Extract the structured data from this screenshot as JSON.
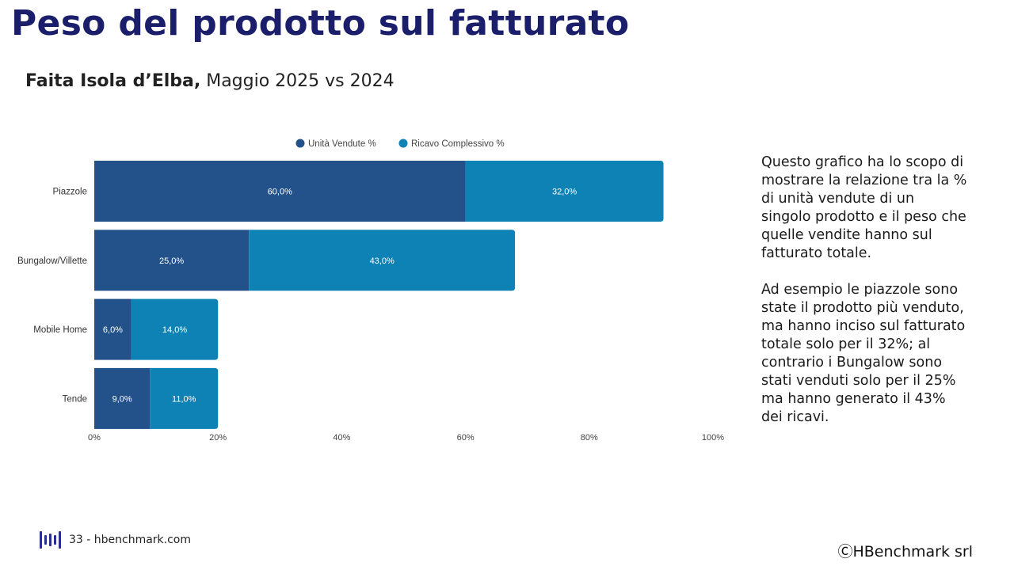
{
  "header": {
    "title": "Peso del prodotto sul fatturato",
    "subtitle_bold": "Faita Isola d’Elba,",
    "subtitle_rest": " Maggio 2025 vs 2024"
  },
  "description": {
    "paragraph1": "Questo grafico ha lo scopo di mostrare la relazione tra la % di unità vendute di un singolo prodotto e il peso che quelle vendite hanno sul fatturato totale.",
    "paragraph2": "Ad esempio le piazzole sono state il prodotto più venduto, ma hanno inciso sul fatturato totale solo per il 32%; al contrario i Bungalow sono stati venduti solo per il 25% ma hanno generato il 43% dei ricavi."
  },
  "footer": {
    "page_text": "33 - hbenchmark.com",
    "copyright": "ⒸHBenchmark srl"
  },
  "colors": {
    "title": "#1b1f6b",
    "series_units": "#23528a",
    "series_revenue": "#0e82b4"
  },
  "chart_data": {
    "type": "bar",
    "orientation": "horizontal",
    "stacked": true,
    "categories": [
      "Piazzole",
      "Bungalow/Villette",
      "Mobile Home",
      "Tende"
    ],
    "series": [
      {
        "name": "Unità Vendute %",
        "values": [
          60.0,
          25.0,
          6.0,
          9.0
        ],
        "labels": [
          "60,0%",
          "25,0%",
          "6,0%",
          "9,0%"
        ]
      },
      {
        "name": "Ricavo Complessivo %",
        "values": [
          32.0,
          43.0,
          14.0,
          11.0
        ],
        "labels": [
          "32,0%",
          "43,0%",
          "14,0%",
          "11,0%"
        ]
      }
    ],
    "xlim": [
      0,
      100
    ],
    "x_ticks": [
      0,
      20,
      40,
      60,
      80,
      100
    ],
    "x_tick_labels": [
      "0%",
      "20%",
      "40%",
      "60%",
      "80%",
      "100%"
    ],
    "legend_position": "top-center",
    "grid": false
  }
}
